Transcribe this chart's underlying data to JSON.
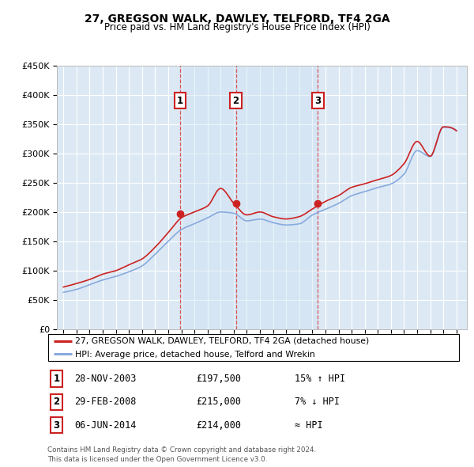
{
  "title": "27, GREGSON WALK, DAWLEY, TELFORD, TF4 2GA",
  "subtitle": "Price paid vs. HM Land Registry's House Price Index (HPI)",
  "legend_label_red": "27, GREGSON WALK, DAWLEY, TELFORD, TF4 2GA (detached house)",
  "legend_label_blue": "HPI: Average price, detached house, Telford and Wrekin",
  "footer": "Contains HM Land Registry data © Crown copyright and database right 2024.\nThis data is licensed under the Open Government Licence v3.0.",
  "sale_events": [
    {
      "num": 1,
      "date": "28-NOV-2003",
      "price": "£197,500",
      "hpi_rel": "15% ↑ HPI",
      "x_year": 2003.91
    },
    {
      "num": 2,
      "date": "29-FEB-2008",
      "price": "£215,000",
      "hpi_rel": "7% ↓ HPI",
      "x_year": 2008.17
    },
    {
      "num": 3,
      "date": "06-JUN-2014",
      "price": "£214,000",
      "hpi_rel": "≈ HPI",
      "x_year": 2014.43
    }
  ],
  "sale_prices": [
    197500,
    215000,
    214000
  ],
  "ylim": [
    0,
    450000
  ],
  "yticks": [
    0,
    50000,
    100000,
    150000,
    200000,
    250000,
    300000,
    350000,
    400000,
    450000
  ],
  "xlim_left": 1994.5,
  "xlim_right": 2025.8,
  "xticks": [
    1995,
    1996,
    1997,
    1998,
    1999,
    2000,
    2001,
    2002,
    2003,
    2004,
    2005,
    2006,
    2007,
    2008,
    2009,
    2010,
    2011,
    2012,
    2013,
    2014,
    2015,
    2016,
    2017,
    2018,
    2019,
    2020,
    2021,
    2022,
    2023,
    2024,
    2025
  ],
  "red_color": "#cc2222",
  "blue_color": "#88aadd",
  "shade_color": "#d0e4f5",
  "vline_color": "#dd4444",
  "plot_bg": "#dce9f5",
  "grid_color": "#ffffff"
}
